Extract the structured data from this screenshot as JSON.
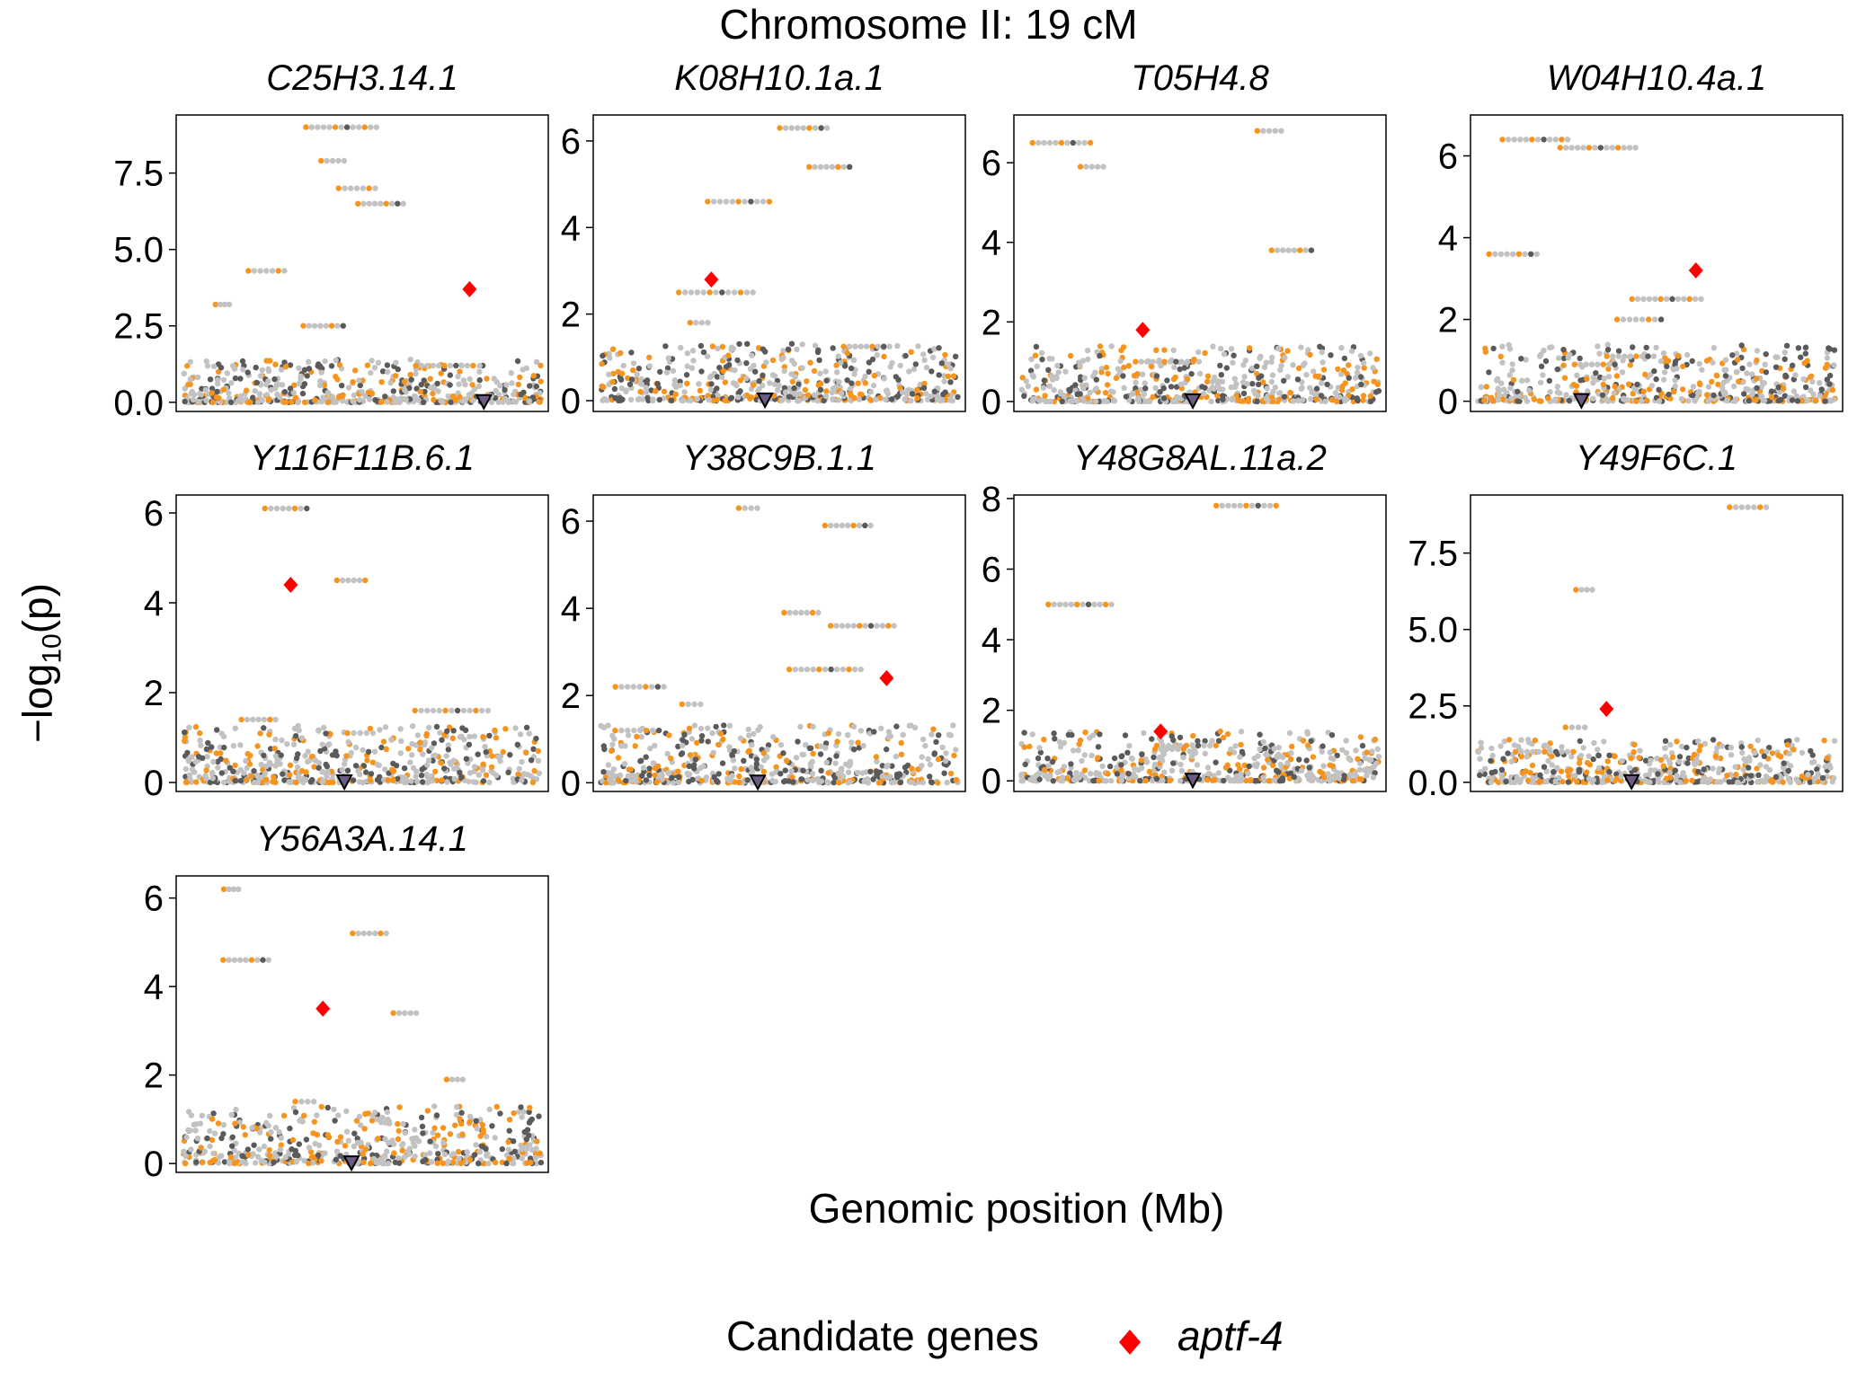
{
  "figure": {
    "title": "Chromosome II: 19 cM",
    "xlabel": "Genomic position (Mb)",
    "ylabel_prefix": "−log",
    "ylabel_sub": "10",
    "ylabel_arg": "(p)",
    "legend_title": "Candidate genes",
    "legend_label": "aptf-4"
  },
  "colors": {
    "orange": "#f7941d",
    "dark_gray": "#5a5a5a",
    "light_gray": "#c2c2c2",
    "highlight": "#ff0000",
    "marker_fill": "#6b5d82"
  },
  "chart_data": [
    {
      "type": "scatter",
      "title": "C25H3.14.1",
      "ylim": [
        -0.3,
        9.4
      ],
      "yticks": [
        "0.0",
        "2.5",
        "5.0",
        "7.5"
      ],
      "ytick_values": [
        0,
        2.5,
        5.0,
        7.5
      ],
      "peaks": [
        9.0,
        7.9,
        7.0,
        6.5,
        4.3,
        3.2,
        2.5,
        1.2
      ],
      "candidate": {
        "gene": "aptf-4",
        "x": 0.8,
        "y": 3.7
      },
      "marker_x": 0.84
    },
    {
      "type": "scatter",
      "title": "K08H10.1a.1",
      "ylim": [
        -0.25,
        6.6
      ],
      "yticks": [
        "0",
        "2",
        "4",
        "6"
      ],
      "ytick_values": [
        0,
        2,
        4,
        6
      ],
      "peaks": [
        6.3,
        5.4,
        4.6,
        2.5,
        1.8,
        1.25
      ],
      "candidate": {
        "gene": "aptf-4",
        "x": 0.31,
        "y": 2.8
      },
      "marker_x": 0.46
    },
    {
      "type": "scatter",
      "title": "T05H4.8",
      "ylim": [
        -0.25,
        7.2
      ],
      "yticks": [
        "0",
        "2",
        "4",
        "6"
      ],
      "ytick_values": [
        0,
        2,
        4,
        6
      ],
      "peaks": [
        6.8,
        6.5,
        5.9,
        3.8,
        1.0,
        0.5
      ],
      "candidate": {
        "gene": "aptf-4",
        "x": 0.34,
        "y": 1.8
      },
      "marker_x": 0.48
    },
    {
      "type": "scatter",
      "title": "W04H10.4a.1",
      "ylim": [
        -0.25,
        7.0
      ],
      "yticks": [
        "0",
        "2",
        "4",
        "6"
      ],
      "ytick_values": [
        0,
        2,
        4,
        6
      ],
      "peaks": [
        6.4,
        6.2,
        3.6,
        2.5,
        2.0,
        1.1,
        0.9
      ],
      "candidate": {
        "gene": "aptf-4",
        "x": 0.61,
        "y": 3.2
      },
      "marker_x": 0.29
    },
    {
      "type": "scatter",
      "title": "Y116F11B.6.1",
      "ylim": [
        -0.2,
        6.4
      ],
      "yticks": [
        "0",
        "2",
        "4",
        "6"
      ],
      "ytick_values": [
        0,
        2,
        4,
        6
      ],
      "peaks": [
        6.1,
        4.5,
        1.6,
        1.4,
        1.1
      ],
      "candidate": {
        "gene": "aptf-4",
        "x": 0.3,
        "y": 4.4
      },
      "marker_x": 0.45
    },
    {
      "type": "scatter",
      "title": "Y38C9B.1.1",
      "ylim": [
        -0.2,
        6.6
      ],
      "yticks": [
        "0",
        "2",
        "4",
        "6"
      ],
      "ytick_values": [
        0,
        2,
        4,
        6
      ],
      "peaks": [
        6.3,
        5.9,
        3.9,
        3.6,
        2.6,
        2.2,
        1.8,
        1.2
      ],
      "candidate": {
        "gene": "aptf-4",
        "x": 0.8,
        "y": 2.4
      },
      "marker_x": 0.44
    },
    {
      "type": "scatter",
      "title": "Y48G8AL.11a.2",
      "ylim": [
        -0.3,
        8.1
      ],
      "yticks": [
        "0",
        "2",
        "4",
        "6",
        "8"
      ],
      "ytick_values": [
        0,
        2,
        4,
        6,
        8
      ],
      "peaks": [
        7.8,
        5.0,
        1.0,
        0.9
      ],
      "candidate": {
        "gene": "aptf-4",
        "x": 0.39,
        "y": 1.4
      },
      "marker_x": 0.48
    },
    {
      "type": "scatter",
      "title": "Y49F6C.1",
      "ylim": [
        -0.3,
        9.4
      ],
      "yticks": [
        "0.0",
        "2.5",
        "5.0",
        "7.5"
      ],
      "ytick_values": [
        0,
        2.5,
        5.0,
        7.5
      ],
      "peaks": [
        9.0,
        6.3,
        1.8,
        1.0
      ],
      "candidate": {
        "gene": "aptf-4",
        "x": 0.36,
        "y": 2.4
      },
      "marker_x": 0.43
    },
    {
      "type": "scatter",
      "title": "Y56A3A.14.1",
      "ylim": [
        -0.2,
        6.5
      ],
      "yticks": [
        "0",
        "2",
        "4",
        "6"
      ],
      "ytick_values": [
        0,
        2,
        4,
        6
      ],
      "peaks": [
        6.2,
        5.2,
        4.6,
        3.4,
        1.9,
        1.4
      ],
      "candidate": {
        "gene": "aptf-4",
        "x": 0.39,
        "y": 3.5
      },
      "marker_x": 0.47
    }
  ]
}
